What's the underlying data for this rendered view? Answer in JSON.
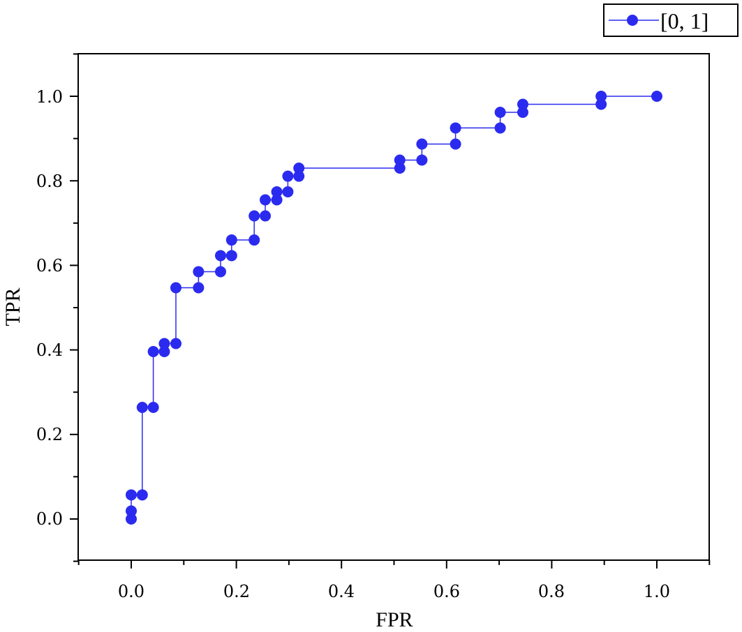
{
  "chart_data": {
    "type": "line",
    "xlabel": "FPR",
    "ylabel": "TPR",
    "xlim": [
      -0.1,
      1.1
    ],
    "ylim": [
      -0.1,
      1.1
    ],
    "x_ticks": [
      "0.0",
      "0.2",
      "0.4",
      "0.6",
      "0.8",
      "1.0"
    ],
    "y_ticks": [
      "0.0",
      "0.2",
      "0.4",
      "0.6",
      "0.8",
      "1.0"
    ],
    "grid": false,
    "legend_position": "top-right",
    "series": [
      {
        "name": "[0, 1]",
        "color": "#2b2bf0",
        "marker": "circle",
        "x": [
          0,
          0,
          0,
          0.021,
          0.021,
          0.042,
          0.042,
          0.063,
          0.063,
          0.085,
          0.085,
          0.128,
          0.128,
          0.17,
          0.17,
          0.191,
          0.191,
          0.234,
          0.234,
          0.255,
          0.255,
          0.277,
          0.277,
          0.298,
          0.298,
          0.319,
          0.319,
          0.511,
          0.511,
          0.553,
          0.553,
          0.617,
          0.617,
          0.702,
          0.702,
          0.745,
          0.745,
          0.894,
          0.894,
          1.0
        ],
        "y": [
          0,
          0.019,
          0.057,
          0.057,
          0.264,
          0.264,
          0.396,
          0.396,
          0.415,
          0.415,
          0.547,
          0.547,
          0.585,
          0.585,
          0.623,
          0.623,
          0.66,
          0.66,
          0.717,
          0.717,
          0.755,
          0.755,
          0.774,
          0.774,
          0.811,
          0.811,
          0.83,
          0.83,
          0.849,
          0.849,
          0.887,
          0.887,
          0.925,
          0.925,
          0.962,
          0.962,
          0.981,
          0.981,
          1.0,
          1.0
        ]
      }
    ]
  }
}
